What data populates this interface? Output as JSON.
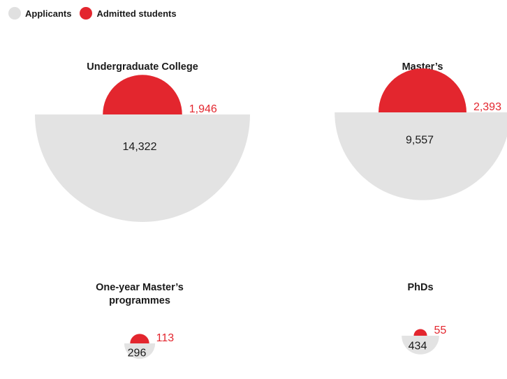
{
  "legend": {
    "applicants": "Applicants",
    "admitted": "Admitted students"
  },
  "colors": {
    "applicants": "#e3e3e3",
    "admitted": "#e3262e"
  },
  "chart_data": {
    "type": "proportional-semicircles",
    "series": [
      {
        "name": "Applicants",
        "color": "#e3e3e3"
      },
      {
        "name": "Admitted students",
        "color": "#e3262e"
      }
    ],
    "groups": [
      {
        "title": [
          "Undergraduate College"
        ],
        "applicants": 14322,
        "admitted": 1946,
        "applicants_label": "14,322",
        "admitted_label": "1,946"
      },
      {
        "title": [
          "Master’s"
        ],
        "applicants": 9557,
        "admitted": 2393,
        "applicants_label": "9,557",
        "admitted_label": "2,393"
      },
      {
        "title": [
          "One-year Master’s",
          "programmes"
        ],
        "applicants": 296,
        "admitted": 113,
        "applicants_label": "296",
        "admitted_label": "113"
      },
      {
        "title": [
          "PhDs"
        ],
        "applicants": 434,
        "admitted": 55,
        "applicants_label": "434",
        "admitted_label": "55"
      }
    ]
  }
}
